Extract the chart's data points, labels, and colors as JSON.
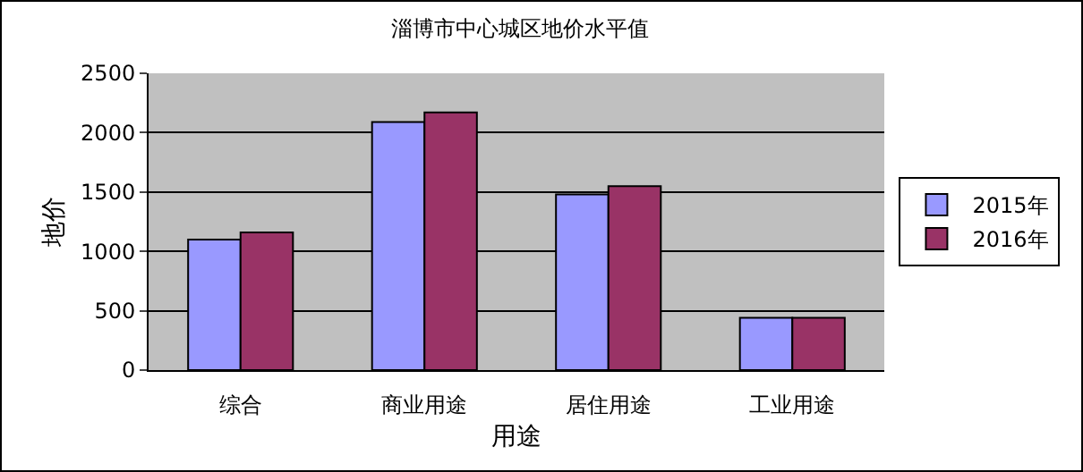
{
  "chart_data": {
    "type": "bar",
    "title": "淄博市中心城区地价水平值",
    "xlabel": "用途",
    "ylabel": "地价",
    "categories": [
      "综合",
      "商业用途",
      "居住用途",
      "工业用途"
    ],
    "series": [
      {
        "name": "2015年",
        "color": "#9999ff",
        "values": [
          1100,
          2090,
          1480,
          440
        ]
      },
      {
        "name": "2016年",
        "color": "#993366",
        "values": [
          1160,
          2170,
          1550,
          440
        ]
      }
    ],
    "ylim": [
      0,
      2500
    ],
    "yticks": [
      0,
      500,
      1000,
      1500,
      2000,
      2500
    ],
    "grid": "y",
    "legend": "right"
  }
}
